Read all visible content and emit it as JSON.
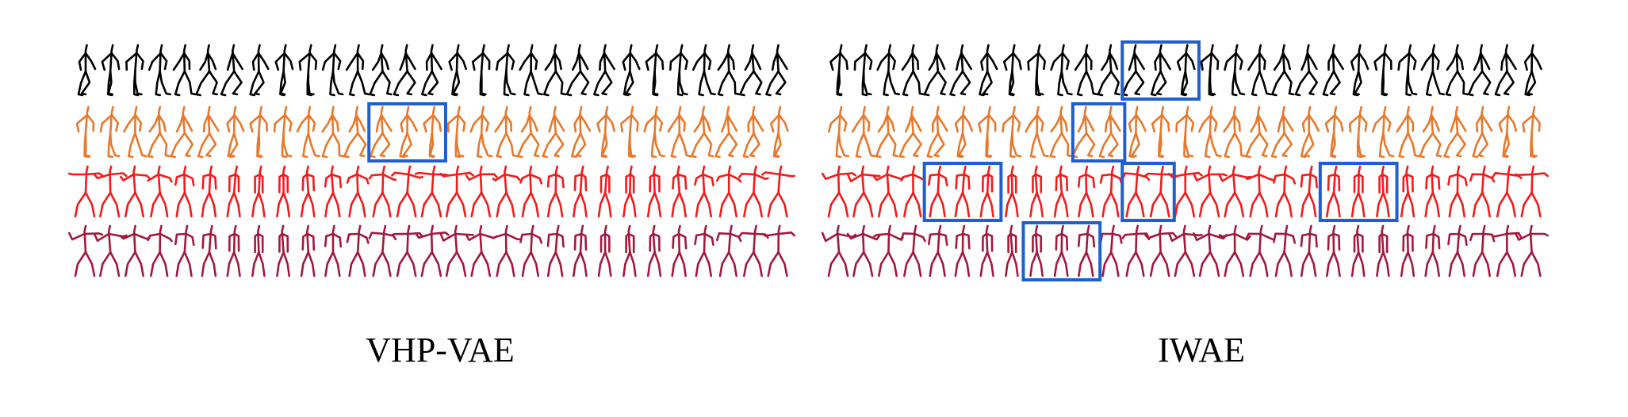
{
  "panels": [
    {
      "label": "VHP-VAE",
      "rows": [
        {
          "color": "#000000",
          "frames": 29,
          "style": "walk"
        },
        {
          "color": "#e8782c",
          "frames": 29,
          "style": "walk"
        },
        {
          "color": "#f21b1b",
          "frames": 29,
          "style": "reach"
        },
        {
          "color": "#a3183d",
          "frames": 29,
          "style": "reach"
        }
      ],
      "highlights": [
        {
          "row_start": 1,
          "row_end": 1,
          "frame_start": 12,
          "frame_end": 14
        }
      ]
    },
    {
      "label": "IWAE",
      "rows": [
        {
          "color": "#000000",
          "frames": 29,
          "style": "walk"
        },
        {
          "color": "#e8782c",
          "frames": 29,
          "style": "walk"
        },
        {
          "color": "#f21b1b",
          "frames": 29,
          "style": "reach"
        },
        {
          "color": "#a3183d",
          "frames": 29,
          "style": "reach"
        }
      ],
      "highlights": [
        {
          "row_start": 0,
          "row_end": 0,
          "frame_start": 12,
          "frame_end": 14
        },
        {
          "row_start": 1,
          "row_end": 1,
          "frame_start": 10,
          "frame_end": 11
        },
        {
          "row_start": 2,
          "row_end": 2,
          "frame_start": 4,
          "frame_end": 6
        },
        {
          "row_start": 2,
          "row_end": 2,
          "frame_start": 12,
          "frame_end": 13
        },
        {
          "row_start": 2,
          "row_end": 2,
          "frame_start": 20,
          "frame_end": 22
        },
        {
          "row_start": 3,
          "row_end": 3,
          "frame_start": 8,
          "frame_end": 10
        }
      ]
    }
  ],
  "highlight_color": "#1f5fd1"
}
